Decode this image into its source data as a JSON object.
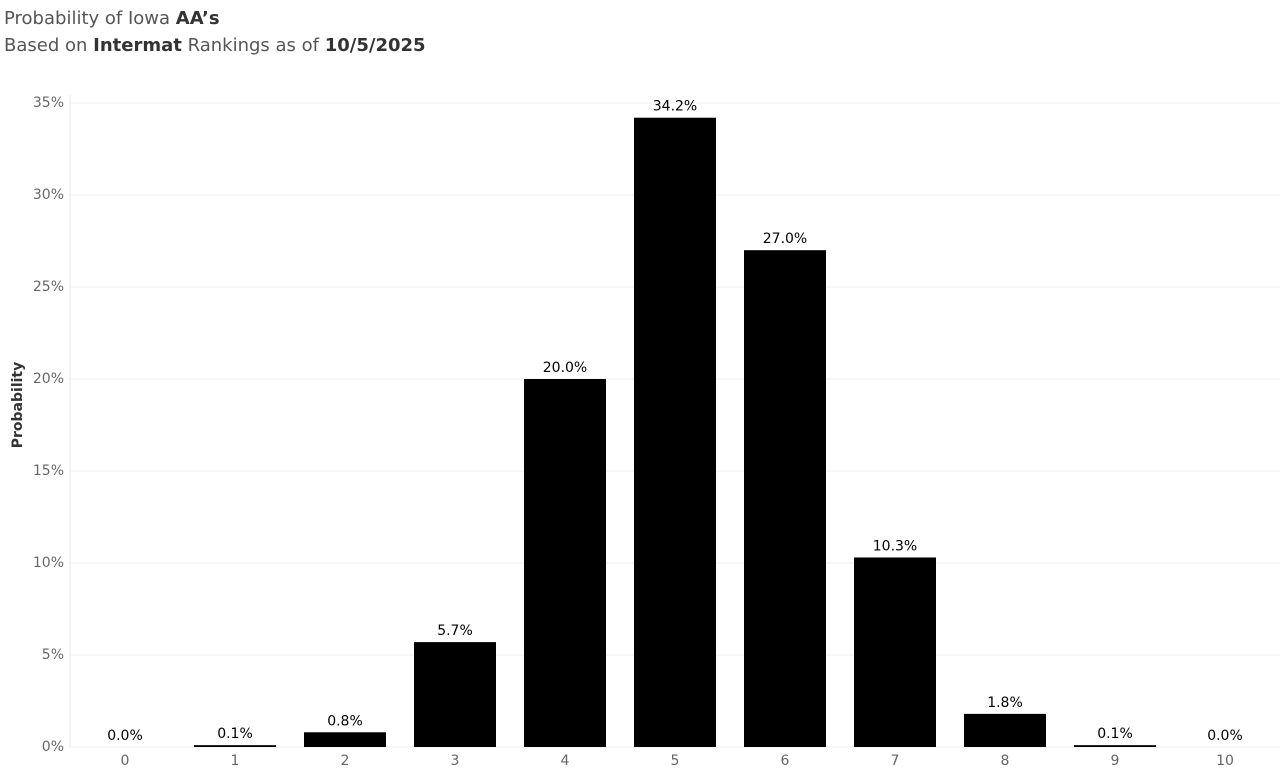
{
  "chart_data": {
    "type": "bar",
    "title_parts": [
      "Probability of Iowa",
      "AA’s"
    ],
    "subtitle_parts": [
      "Based on",
      "Intermat",
      "Rankings as of",
      "10/5/2025"
    ],
    "y_label": "Probability",
    "categories": [
      "0",
      "1",
      "2",
      "3",
      "4",
      "5",
      "6",
      "7",
      "8",
      "9",
      "10"
    ],
    "values": [
      0.0,
      0.1,
      0.8,
      5.7,
      20.0,
      34.2,
      27.0,
      10.3,
      1.8,
      0.1,
      0.0
    ],
    "value_labels": [
      "0.0%",
      "0.1%",
      "0.8%",
      "5.7%",
      "20.0%",
      "34.2%",
      "27.0%",
      "10.3%",
      "1.8%",
      "0.1%",
      "0.0%"
    ],
    "color": "#000000",
    "ylim": [
      0,
      35
    ],
    "yticks": [
      {
        "value": 0,
        "label": "0%"
      },
      {
        "value": 5,
        "label": "5%"
      },
      {
        "value": 10,
        "label": "10%"
      },
      {
        "value": 15,
        "label": "15%"
      },
      {
        "value": 20,
        "label": "20%"
      },
      {
        "value": 25,
        "label": "25%"
      },
      {
        "value": 30,
        "label": "30%"
      },
      {
        "value": 35,
        "label": "35%"
      }
    ],
    "grid": true
  }
}
